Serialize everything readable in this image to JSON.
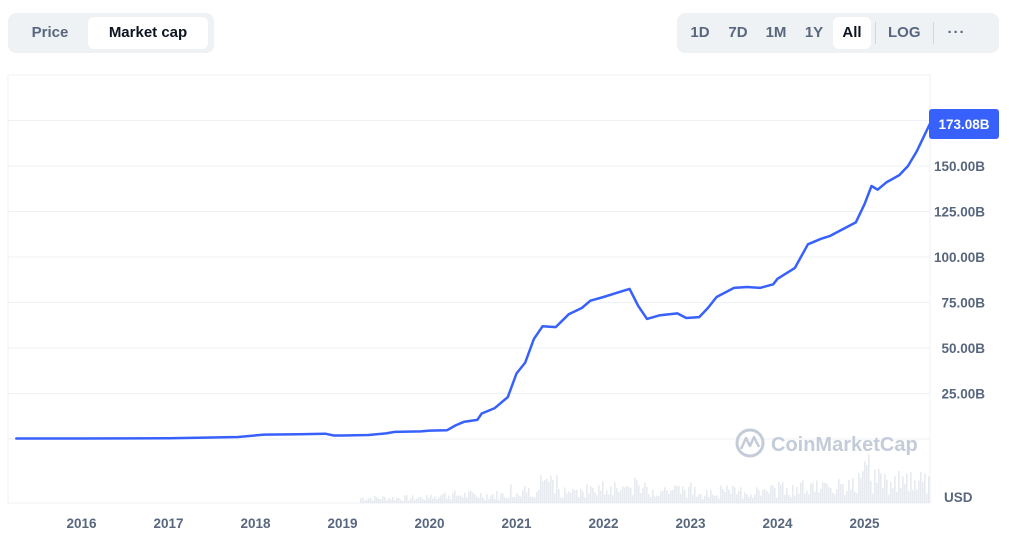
{
  "toggle": {
    "price_label": "Price",
    "market_cap_label": "Market cap",
    "active": "Market cap"
  },
  "ranges": {
    "items": [
      "1D",
      "7D",
      "1M",
      "1Y",
      "All"
    ],
    "active": "All",
    "log_label": "LOG",
    "more_label": "···"
  },
  "watermark": "CoinMarketCap",
  "currency_label": "USD",
  "colors": {
    "line": "#3861fb",
    "tag_bg": "#3861fb",
    "grid": "#eff2f5",
    "volume": "#d3d9e2",
    "axis_text": "#58667e"
  },
  "chart_data": {
    "type": "line",
    "title": "",
    "xlabel": "",
    "ylabel": "",
    "x_ticks": [
      "2016",
      "2017",
      "2018",
      "2019",
      "2020",
      "2021",
      "2022",
      "2023",
      "2024",
      "2025"
    ],
    "y_ticks": [
      "25.00B",
      "50.00B",
      "75.00B",
      "100.00B",
      "125.00B",
      "150.00B"
    ],
    "y_tick_values": [
      25,
      50,
      75,
      100,
      125,
      150
    ],
    "ylim": [
      0,
      190
    ],
    "xlim": [
      2015.25,
      2025.75
    ],
    "current_value_label": "173.08B",
    "current_value": 173.08,
    "series": [
      {
        "unit": "B USD",
        "points": [
          [
            2015.25,
            0.3
          ],
          [
            2016.0,
            0.3
          ],
          [
            2017.0,
            0.4
          ],
          [
            2017.5,
            0.8
          ],
          [
            2017.8,
            1.1
          ],
          [
            2018.0,
            2.0
          ],
          [
            2018.1,
            2.4
          ],
          [
            2018.5,
            2.6
          ],
          [
            2018.8,
            2.9
          ],
          [
            2018.9,
            1.9
          ],
          [
            2019.0,
            1.9
          ],
          [
            2019.3,
            2.2
          ],
          [
            2019.5,
            3.1
          ],
          [
            2019.6,
            3.9
          ],
          [
            2019.9,
            4.2
          ],
          [
            2020.0,
            4.6
          ],
          [
            2020.2,
            4.8
          ],
          [
            2020.3,
            7.5
          ],
          [
            2020.4,
            9.5
          ],
          [
            2020.55,
            10.5
          ],
          [
            2020.6,
            14.0
          ],
          [
            2020.75,
            17.0
          ],
          [
            2020.9,
            23.0
          ],
          [
            2021.0,
            36.0
          ],
          [
            2021.1,
            42.0
          ],
          [
            2021.2,
            55.0
          ],
          [
            2021.3,
            62.0
          ],
          [
            2021.45,
            61.5
          ],
          [
            2021.6,
            68.5
          ],
          [
            2021.75,
            72.0
          ],
          [
            2021.85,
            76.0
          ],
          [
            2022.0,
            78.0
          ],
          [
            2022.2,
            81.0
          ],
          [
            2022.3,
            82.5
          ],
          [
            2022.4,
            73.0
          ],
          [
            2022.5,
            66.0
          ],
          [
            2022.65,
            68.0
          ],
          [
            2022.85,
            69.0
          ],
          [
            2022.95,
            66.5
          ],
          [
            2023.1,
            67.0
          ],
          [
            2023.2,
            72.0
          ],
          [
            2023.3,
            78.0
          ],
          [
            2023.5,
            83.0
          ],
          [
            2023.65,
            83.5
          ],
          [
            2023.8,
            83.0
          ],
          [
            2023.95,
            85.0
          ],
          [
            2024.0,
            88.0
          ],
          [
            2024.2,
            94.0
          ],
          [
            2024.35,
            107.0
          ],
          [
            2024.5,
            110.0
          ],
          [
            2024.6,
            111.5
          ],
          [
            2024.7,
            114.0
          ],
          [
            2024.9,
            119.0
          ],
          [
            2025.0,
            129.0
          ],
          [
            2025.08,
            139.0
          ],
          [
            2025.15,
            137.0
          ],
          [
            2025.25,
            141.0
          ],
          [
            2025.4,
            145.0
          ],
          [
            2025.5,
            150.0
          ],
          [
            2025.6,
            158.0
          ],
          [
            2025.7,
            168.0
          ],
          [
            2025.75,
            173.08
          ]
        ]
      }
    ],
    "volume": "relative trading volume bars along bottom, rising after 2019, spikes around 2021 and 2025"
  }
}
